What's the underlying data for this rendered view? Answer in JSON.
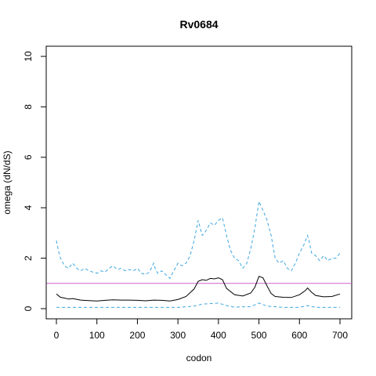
{
  "chart_data": {
    "type": "line",
    "title": "Rv0684",
    "xlabel": "codon",
    "ylabel": "omega (dN/dS)",
    "xlim": [
      0,
      700
    ],
    "ylim": [
      0,
      10
    ],
    "x_ticks": [
      "0",
      "100",
      "200",
      "300",
      "400",
      "500",
      "600",
      "700"
    ],
    "y_ticks": [
      "0",
      "2",
      "4",
      "6",
      "8",
      "10"
    ],
    "grid": false,
    "reference_line": {
      "y": 1,
      "color": "#cc66cc"
    },
    "series": [
      {
        "role": "upper",
        "color": "#3fa7e0",
        "dash": "dashed",
        "points": [
          [
            0,
            2.7
          ],
          [
            5,
            2.3
          ],
          [
            10,
            2.0
          ],
          [
            20,
            1.7
          ],
          [
            30,
            1.6
          ],
          [
            40,
            1.8
          ],
          [
            50,
            1.6
          ],
          [
            60,
            1.5
          ],
          [
            70,
            1.6
          ],
          [
            80,
            1.5
          ],
          [
            90,
            1.45
          ],
          [
            100,
            1.4
          ],
          [
            110,
            1.5
          ],
          [
            120,
            1.45
          ],
          [
            130,
            1.6
          ],
          [
            140,
            1.7
          ],
          [
            150,
            1.55
          ],
          [
            160,
            1.6
          ],
          [
            170,
            1.5
          ],
          [
            180,
            1.55
          ],
          [
            190,
            1.5
          ],
          [
            200,
            1.6
          ],
          [
            210,
            1.4
          ],
          [
            220,
            1.35
          ],
          [
            230,
            1.45
          ],
          [
            240,
            1.8
          ],
          [
            245,
            1.55
          ],
          [
            250,
            1.4
          ],
          [
            260,
            1.5
          ],
          [
            270,
            1.35
          ],
          [
            280,
            1.2
          ],
          [
            290,
            1.5
          ],
          [
            300,
            1.8
          ],
          [
            310,
            1.7
          ],
          [
            320,
            1.8
          ],
          [
            330,
            2.1
          ],
          [
            340,
            2.7
          ],
          [
            350,
            3.5
          ],
          [
            355,
            3.2
          ],
          [
            360,
            2.9
          ],
          [
            370,
            3.1
          ],
          [
            380,
            3.4
          ],
          [
            390,
            3.3
          ],
          [
            400,
            3.5
          ],
          [
            410,
            3.6
          ],
          [
            420,
            2.9
          ],
          [
            430,
            2.3
          ],
          [
            440,
            2.0
          ],
          [
            450,
            1.9
          ],
          [
            460,
            1.6
          ],
          [
            470,
            1.8
          ],
          [
            480,
            2.4
          ],
          [
            490,
            3.2
          ],
          [
            500,
            4.25
          ],
          [
            510,
            3.9
          ],
          [
            520,
            3.5
          ],
          [
            530,
            2.9
          ],
          [
            540,
            2.0
          ],
          [
            550,
            1.8
          ],
          [
            560,
            1.9
          ],
          [
            570,
            1.6
          ],
          [
            580,
            1.5
          ],
          [
            590,
            1.8
          ],
          [
            600,
            2.2
          ],
          [
            610,
            2.5
          ],
          [
            620,
            2.9
          ],
          [
            625,
            2.6
          ],
          [
            630,
            2.2
          ],
          [
            640,
            2.1
          ],
          [
            650,
            1.9
          ],
          [
            660,
            2.1
          ],
          [
            670,
            1.9
          ],
          [
            680,
            2.0
          ],
          [
            690,
            2.0
          ],
          [
            700,
            2.2
          ]
        ]
      },
      {
        "role": "mean",
        "color": "#000000",
        "dash": "solid",
        "points": [
          [
            0,
            0.58
          ],
          [
            10,
            0.45
          ],
          [
            20,
            0.42
          ],
          [
            30,
            0.38
          ],
          [
            40,
            0.4
          ],
          [
            60,
            0.34
          ],
          [
            80,
            0.32
          ],
          [
            100,
            0.3
          ],
          [
            120,
            0.33
          ],
          [
            140,
            0.35
          ],
          [
            160,
            0.34
          ],
          [
            180,
            0.34
          ],
          [
            200,
            0.33
          ],
          [
            220,
            0.31
          ],
          [
            240,
            0.34
          ],
          [
            260,
            0.33
          ],
          [
            280,
            0.3
          ],
          [
            300,
            0.36
          ],
          [
            320,
            0.48
          ],
          [
            340,
            0.78
          ],
          [
            350,
            1.08
          ],
          [
            360,
            1.15
          ],
          [
            370,
            1.12
          ],
          [
            380,
            1.2
          ],
          [
            390,
            1.18
          ],
          [
            400,
            1.22
          ],
          [
            410,
            1.15
          ],
          [
            420,
            0.8
          ],
          [
            440,
            0.55
          ],
          [
            460,
            0.5
          ],
          [
            480,
            0.62
          ],
          [
            490,
            0.85
          ],
          [
            500,
            1.28
          ],
          [
            510,
            1.22
          ],
          [
            520,
            0.9
          ],
          [
            530,
            0.6
          ],
          [
            540,
            0.48
          ],
          [
            560,
            0.45
          ],
          [
            580,
            0.44
          ],
          [
            600,
            0.55
          ],
          [
            615,
            0.72
          ],
          [
            620,
            0.82
          ],
          [
            630,
            0.65
          ],
          [
            640,
            0.52
          ],
          [
            660,
            0.47
          ],
          [
            680,
            0.48
          ],
          [
            700,
            0.58
          ]
        ]
      },
      {
        "role": "lower",
        "color": "#3fa7e0",
        "dash": "dashed",
        "points": [
          [
            0,
            0.05
          ],
          [
            100,
            0.05
          ],
          [
            200,
            0.05
          ],
          [
            300,
            0.05
          ],
          [
            340,
            0.1
          ],
          [
            360,
            0.18
          ],
          [
            380,
            0.2
          ],
          [
            400,
            0.22
          ],
          [
            420,
            0.12
          ],
          [
            440,
            0.06
          ],
          [
            480,
            0.08
          ],
          [
            500,
            0.22
          ],
          [
            520,
            0.1
          ],
          [
            560,
            0.05
          ],
          [
            600,
            0.05
          ],
          [
            620,
            0.12
          ],
          [
            640,
            0.05
          ],
          [
            700,
            0.05
          ]
        ]
      }
    ]
  }
}
